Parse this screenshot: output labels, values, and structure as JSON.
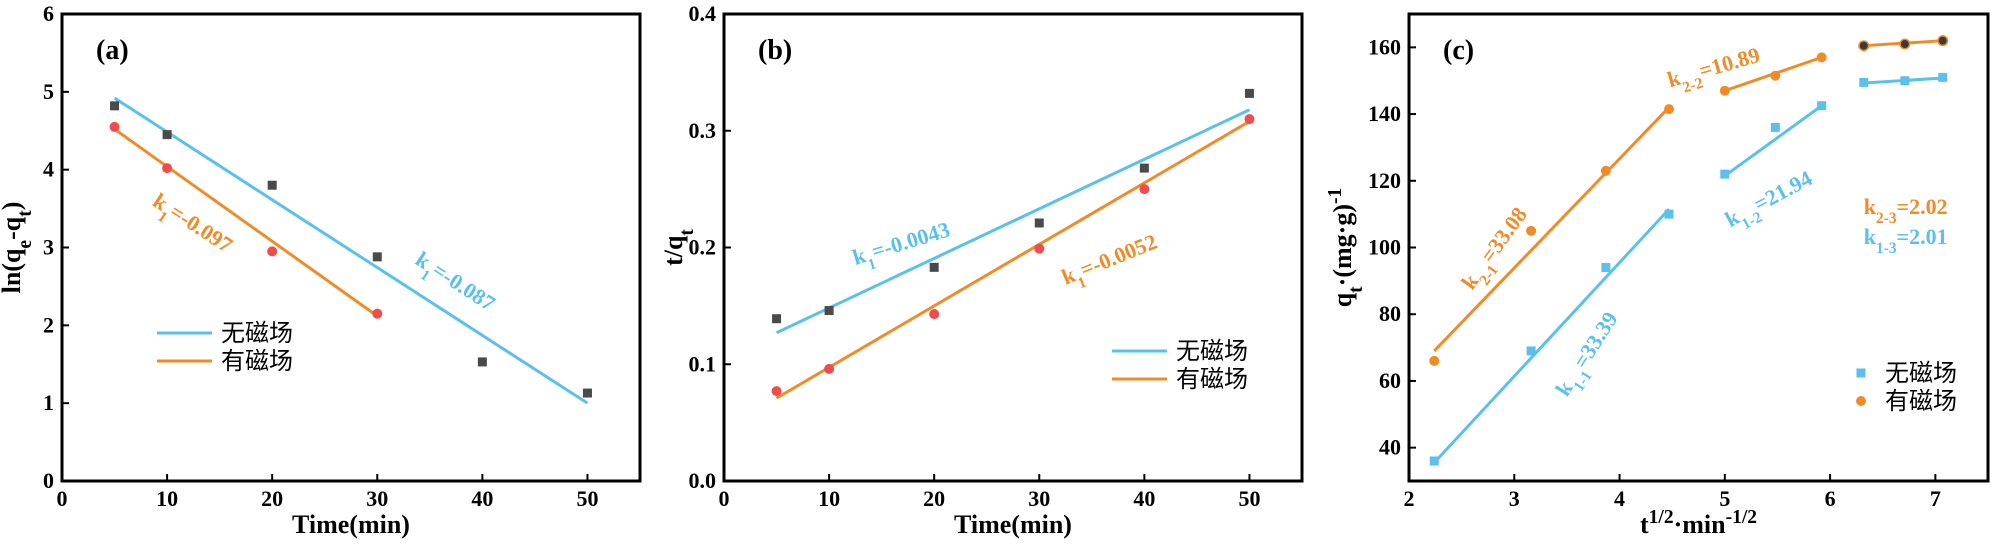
{
  "chart_data": [
    {
      "panel": "a",
      "type": "scatter",
      "tag": "(a)",
      "xlabel": "Time(min)",
      "ylabel": "ln(q_e-q_t)",
      "xlim": [
        0,
        55
      ],
      "ylim": [
        0,
        6
      ],
      "xticks": [
        0,
        10,
        20,
        30,
        40,
        50
      ],
      "yticks": [
        0,
        1,
        2,
        3,
        4,
        5,
        6
      ],
      "legend_position": "lower-left",
      "series": [
        {
          "name": "无磁场",
          "color": "#5bc0eb",
          "marker": "square",
          "marker_color": "#4a4a4a",
          "x": [
            5,
            10,
            20,
            30,
            40,
            50
          ],
          "y": [
            4.82,
            4.45,
            3.8,
            2.88,
            1.53,
            1.13
          ],
          "fit": {
            "x": [
              5,
              50
            ],
            "y": [
              4.92,
              1.0
            ]
          },
          "annotation": {
            "text_k": "k",
            "text_sub": "1",
            "text_val": "=-0.087",
            "x": 33.5,
            "y": 2.8,
            "angle": 33
          }
        },
        {
          "name": "有磁场",
          "color": "#f08c28",
          "marker": "circle",
          "marker_color": "#ef4c4c",
          "x": [
            5,
            10,
            20,
            30
          ],
          "y": [
            4.55,
            4.02,
            2.95,
            2.15
          ],
          "fit": {
            "x": [
              5,
              30
            ],
            "y": [
              4.52,
              2.12
            ]
          },
          "annotation": {
            "text_k": "k",
            "text_sub": "1",
            "text_val": "=-0.097",
            "x": 8.5,
            "y": 3.55,
            "angle": 33
          }
        }
      ]
    },
    {
      "panel": "b",
      "type": "scatter",
      "tag": "(b)",
      "xlabel": "Time(min)",
      "ylabel": "t/q_t",
      "xlim": [
        0,
        55
      ],
      "ylim": [
        0.0,
        0.4
      ],
      "xticks": [
        0,
        10,
        20,
        30,
        40,
        50
      ],
      "yticks": [
        0.0,
        0.1,
        0.2,
        0.3,
        0.4
      ],
      "legend_position": "lower-right",
      "series": [
        {
          "name": "无磁场",
          "color": "#5bc0eb",
          "marker": "square",
          "marker_color": "#4a4a4a",
          "x": [
            5,
            10,
            20,
            30,
            40,
            50
          ],
          "y": [
            0.139,
            0.146,
            0.183,
            0.221,
            0.268,
            0.332
          ],
          "fit": {
            "x": [
              5,
              50
            ],
            "y": [
              0.127,
              0.318
            ]
          },
          "annotation": {
            "text_k": "k",
            "text_sub": "1",
            "text_val": "=-0.0043",
            "x": 12.5,
            "y": 0.185,
            "angle": -17
          }
        },
        {
          "name": "有磁场",
          "color": "#f08c28",
          "marker": "circle",
          "marker_color": "#ef4c4c",
          "x": [
            5,
            10,
            20,
            30,
            40,
            50
          ],
          "y": [
            0.077,
            0.096,
            0.143,
            0.199,
            0.25,
            0.31
          ],
          "fit": {
            "x": [
              5,
              50
            ],
            "y": [
              0.071,
              0.308
            ]
          },
          "annotation": {
            "text_k": "k",
            "text_sub": "1",
            "text_val": "=-0.0052",
            "x": 32.5,
            "y": 0.168,
            "angle": -22
          }
        }
      ]
    },
    {
      "panel": "c",
      "type": "scatter",
      "tag": "(c)",
      "xlabel": "t^1/2·min^-1/2",
      "ylabel": "q_t·(mg·g)^-1",
      "xlim": [
        2,
        7.5
      ],
      "ylim": [
        30,
        170
      ],
      "xticks": [
        2,
        3,
        4,
        5,
        6,
        7
      ],
      "yticks": [
        40,
        60,
        80,
        100,
        120,
        140,
        160
      ],
      "legend_position": "lower-right",
      "series": [
        {
          "name": "无磁场",
          "color": "#5bc0eb",
          "marker": "square",
          "marker_color": "#5bc0eb",
          "x": [
            2.24,
            3.16,
            3.87,
            4.47,
            5.0,
            5.48,
            5.92,
            6.32,
            6.71,
            7.07
          ],
          "y": [
            36,
            69,
            94,
            110,
            122,
            136,
            142.5,
            149.5,
            150,
            151
          ],
          "fits": [
            {
              "x": [
                2.24,
                4.47
              ],
              "y": [
                35.5,
                111.5
              ]
            },
            {
              "x": [
                5.0,
                5.92
              ],
              "y": [
                121.5,
                142.5
              ]
            },
            {
              "x": [
                6.32,
                7.07
              ],
              "y": [
                149.3,
                150.8
              ]
            }
          ],
          "annotations": [
            {
              "text_k": "k",
              "text_sub": "1-1",
              "text_val": "=33.39",
              "x": 3.5,
              "y": 55,
              "angle": -57
            },
            {
              "text_k": "k",
              "text_sub": "1-2",
              "text_val": "=21.94",
              "x": 5.05,
              "y": 106,
              "angle": -28
            },
            {
              "text_k": "k",
              "text_sub": "1-3",
              "text_val": "=2.01",
              "x": 6.32,
              "y": 101,
              "angle": 0
            }
          ]
        },
        {
          "name": "有磁场",
          "color": "#f08c28",
          "marker": "circle",
          "marker_color": "#f08c28",
          "x": [
            2.24,
            3.16,
            3.87,
            4.47,
            5.0,
            5.48,
            5.92,
            6.32,
            6.71,
            7.07
          ],
          "y": [
            66,
            105,
            123,
            141.5,
            147,
            151.5,
            157,
            160.5,
            161,
            162
          ],
          "fits": [
            {
              "x": [
                2.24,
                4.47
              ],
              "y": [
                69,
                142
              ]
            },
            {
              "x": [
                5.0,
                5.92
              ],
              "y": [
                147,
                157
              ]
            },
            {
              "x": [
                6.32,
                7.07
              ],
              "y": [
                160.5,
                162
              ]
            }
          ],
          "fit_secondary_color": "#000000",
          "annotations": [
            {
              "text_k": "k",
              "text_sub": "2-1",
              "text_val": "=33.08",
              "x": 2.6,
              "y": 87,
              "angle": -54
            },
            {
              "text_k": "k",
              "text_sub": "2-2",
              "text_val": "=10.89",
              "x": 4.48,
              "y": 148,
              "angle": -16
            },
            {
              "text_k": "k",
              "text_sub": "2-3",
              "text_val": "=2.02",
              "x": 6.32,
              "y": 110,
              "angle": 0
            }
          ]
        }
      ]
    }
  ]
}
